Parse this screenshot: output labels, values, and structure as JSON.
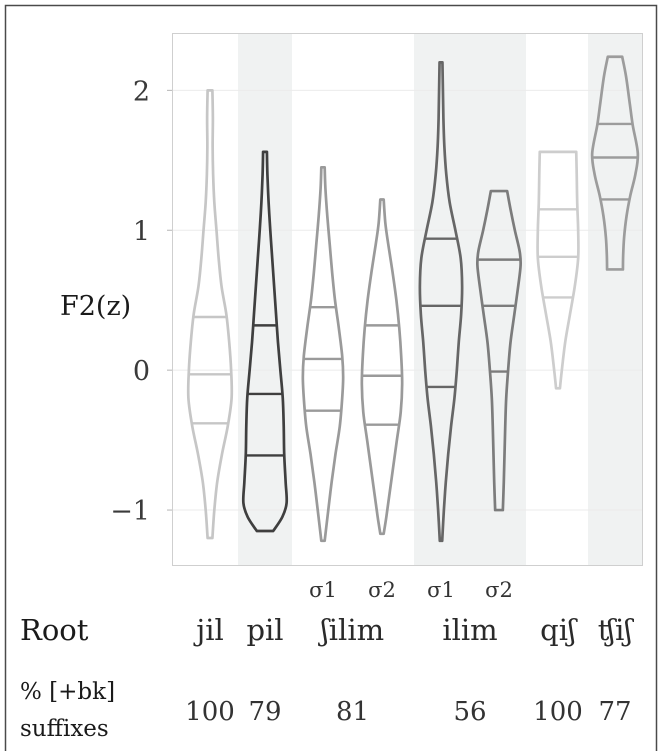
{
  "labels": {
    "root_row": "Root",
    "suffix_row_line1": "% [+bk]",
    "suffix_row_line2": "suffixes"
  },
  "style": {
    "band_color": "#f0f2f2",
    "panel_color": "#ffffff",
    "frame_color": "#4a4a4a"
  },
  "chart_data": {
    "type": "violin",
    "ylabel": "F2(z)",
    "ylim": [
      -1.4,
      2.41
    ],
    "yticks": [
      2,
      1,
      0,
      -1
    ],
    "ytick_labels": [
      "2",
      "1",
      "0",
      "−1"
    ],
    "grid": true,
    "legend": "none",
    "groups": [
      {
        "root": "jil",
        "pct_bk_suffixes": "100",
        "shaded": false,
        "violins": [
          {
            "color": "#c6c6c6",
            "min": -1.2,
            "max": 2.0,
            "quartiles": [
              -0.38,
              -0.03,
              0.38
            ],
            "density": [
              [
                2.0,
                0.1
              ],
              [
                1.8,
                0.12
              ],
              [
                1.6,
                0.11
              ],
              [
                1.4,
                0.13
              ],
              [
                1.2,
                0.18
              ],
              [
                1.0,
                0.27
              ],
              [
                0.8,
                0.36
              ],
              [
                0.6,
                0.48
              ],
              [
                0.4,
                0.68
              ],
              [
                0.2,
                0.8
              ],
              [
                0.0,
                0.88
              ],
              [
                -0.2,
                0.9
              ],
              [
                -0.4,
                0.74
              ],
              [
                -0.6,
                0.5
              ],
              [
                -0.8,
                0.3
              ],
              [
                -1.0,
                0.18
              ],
              [
                -1.2,
                0.1
              ]
            ]
          }
        ]
      },
      {
        "root": "pil",
        "pct_bk_suffixes": "79",
        "shaded": true,
        "violins": [
          {
            "color": "#3f3f3f",
            "min": -1.15,
            "max": 1.56,
            "quartiles": [
              -0.61,
              -0.17,
              0.32
            ],
            "density": [
              [
                1.56,
                0.08
              ],
              [
                1.4,
                0.1
              ],
              [
                1.2,
                0.15
              ],
              [
                1.0,
                0.22
              ],
              [
                0.8,
                0.3
              ],
              [
                0.6,
                0.38
              ],
              [
                0.4,
                0.46
              ],
              [
                0.2,
                0.54
              ],
              [
                0.0,
                0.64
              ],
              [
                -0.2,
                0.74
              ],
              [
                -0.4,
                0.78
              ],
              [
                -0.6,
                0.8
              ],
              [
                -0.8,
                0.86
              ],
              [
                -0.95,
                0.9
              ],
              [
                -1.05,
                0.72
              ],
              [
                -1.15,
                0.34
              ]
            ]
          }
        ]
      },
      {
        "root": "ʃilim",
        "pct_bk_suffixes": "81",
        "shaded": false,
        "violins": [
          {
            "syllable": "σ1",
            "color": "#9a9a9a",
            "min": -1.22,
            "max": 1.45,
            "quartiles": [
              -0.29,
              0.08,
              0.45
            ],
            "density": [
              [
                1.45,
                0.07
              ],
              [
                1.3,
                0.1
              ],
              [
                1.1,
                0.18
              ],
              [
                0.9,
                0.28
              ],
              [
                0.7,
                0.38
              ],
              [
                0.5,
                0.5
              ],
              [
                0.3,
                0.66
              ],
              [
                0.1,
                0.8
              ],
              [
                -0.05,
                0.84
              ],
              [
                -0.2,
                0.8
              ],
              [
                -0.4,
                0.7
              ],
              [
                -0.6,
                0.52
              ],
              [
                -0.8,
                0.36
              ],
              [
                -1.0,
                0.22
              ],
              [
                -1.22,
                0.07
              ]
            ]
          },
          {
            "syllable": "σ2",
            "color": "#9a9a9a",
            "min": -1.17,
            "max": 1.22,
            "quartiles": [
              -0.39,
              -0.04,
              0.32
            ],
            "density": [
              [
                1.22,
                0.07
              ],
              [
                1.05,
                0.14
              ],
              [
                0.9,
                0.26
              ],
              [
                0.7,
                0.44
              ],
              [
                0.5,
                0.6
              ],
              [
                0.3,
                0.72
              ],
              [
                0.1,
                0.8
              ],
              [
                -0.1,
                0.84
              ],
              [
                -0.3,
                0.78
              ],
              [
                -0.5,
                0.62
              ],
              [
                -0.7,
                0.46
              ],
              [
                -0.9,
                0.3
              ],
              [
                -1.05,
                0.18
              ],
              [
                -1.17,
                0.07
              ]
            ]
          }
        ]
      },
      {
        "root": "ilim",
        "pct_bk_suffixes": "56",
        "shaded": true,
        "violins": [
          {
            "syllable": "σ1",
            "color": "#666666",
            "min": -1.22,
            "max": 2.2,
            "quartiles": [
              -0.12,
              0.46,
              0.94
            ],
            "density": [
              [
                2.2,
                0.06
              ],
              [
                2.0,
                0.08
              ],
              [
                1.8,
                0.1
              ],
              [
                1.6,
                0.14
              ],
              [
                1.4,
                0.22
              ],
              [
                1.2,
                0.36
              ],
              [
                1.0,
                0.6
              ],
              [
                0.8,
                0.82
              ],
              [
                0.6,
                0.88
              ],
              [
                0.4,
                0.84
              ],
              [
                0.2,
                0.74
              ],
              [
                0.0,
                0.66
              ],
              [
                -0.2,
                0.56
              ],
              [
                -0.4,
                0.42
              ],
              [
                -0.6,
                0.3
              ],
              [
                -0.8,
                0.2
              ],
              [
                -1.0,
                0.12
              ],
              [
                -1.22,
                0.05
              ]
            ]
          },
          {
            "syllable": "σ2",
            "color": "#7c7c7c",
            "min": -1.0,
            "max": 1.28,
            "quartiles": [
              -0.01,
              0.46,
              0.79
            ],
            "density": [
              [
                1.28,
                0.34
              ],
              [
                1.15,
                0.48
              ],
              [
                1.0,
                0.66
              ],
              [
                0.85,
                0.86
              ],
              [
                0.75,
                0.9
              ],
              [
                0.6,
                0.8
              ],
              [
                0.4,
                0.64
              ],
              [
                0.2,
                0.48
              ],
              [
                0.0,
                0.38
              ],
              [
                -0.2,
                0.3
              ],
              [
                -0.4,
                0.26
              ],
              [
                -0.6,
                0.23
              ],
              [
                -0.8,
                0.2
              ],
              [
                -1.0,
                0.16
              ]
            ]
          }
        ]
      },
      {
        "root": "qiʃ",
        "pct_bk_suffixes": "100",
        "shaded": false,
        "violins": [
          {
            "color": "#cdcdcd",
            "min": -0.13,
            "max": 1.56,
            "quartiles": [
              0.52,
              0.81,
              1.15
            ],
            "density": [
              [
                1.56,
                0.76
              ],
              [
                1.4,
                0.78
              ],
              [
                1.2,
                0.8
              ],
              [
                1.0,
                0.84
              ],
              [
                0.8,
                0.84
              ],
              [
                0.6,
                0.7
              ],
              [
                0.4,
                0.5
              ],
              [
                0.2,
                0.3
              ],
              [
                0.0,
                0.16
              ],
              [
                -0.13,
                0.08
              ]
            ]
          }
        ]
      },
      {
        "root": "ʧiʃ",
        "pct_bk_suffixes": "77",
        "shaded": true,
        "violins": [
          {
            "color": "#9c9c9c",
            "min": 0.72,
            "max": 2.24,
            "quartiles": [
              1.22,
              1.52,
              1.76
            ],
            "density": [
              [
                2.24,
                0.3
              ],
              [
                2.1,
                0.46
              ],
              [
                1.9,
                0.62
              ],
              [
                1.75,
                0.74
              ],
              [
                1.55,
                0.95
              ],
              [
                1.4,
                0.85
              ],
              [
                1.25,
                0.64
              ],
              [
                1.1,
                0.48
              ],
              [
                0.95,
                0.38
              ],
              [
                0.82,
                0.34
              ],
              [
                0.72,
                0.33
              ]
            ]
          }
        ]
      }
    ]
  }
}
